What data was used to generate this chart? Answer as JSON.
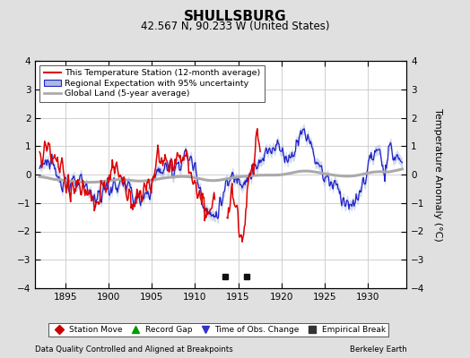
{
  "title": "SHULLSBURG",
  "subtitle": "42.567 N, 90.233 W (United States)",
  "ylabel": "Temperature Anomaly (°C)",
  "xlabel_left": "Data Quality Controlled and Aligned at Breakpoints",
  "xlabel_right": "Berkeley Earth",
  "ylim": [
    -4,
    4
  ],
  "xlim": [
    1891.5,
    1934.5
  ],
  "yticks": [
    -4,
    -3,
    -2,
    -1,
    0,
    1,
    2,
    3,
    4
  ],
  "xticks": [
    1895,
    1900,
    1905,
    1910,
    1915,
    1920,
    1925,
    1930
  ],
  "bg_color": "#e0e0e0",
  "plot_bg_color": "#ffffff",
  "grid_color": "#c8c8c8",
  "empirical_breaks": [
    1913.5,
    1916.0
  ],
  "red_line_color": "#dd0000",
  "blue_line_color": "#2222cc",
  "blue_band_color": "#aabbdd",
  "gray_line_color": "#aaaaaa",
  "legend_labels": [
    "This Temperature Station (12-month average)",
    "Regional Expectation with 95% uncertainty",
    "Global Land (5-year average)"
  ],
  "marker_legend_labels": [
    "Station Move",
    "Record Gap",
    "Time of Obs. Change",
    "Empirical Break"
  ],
  "marker_legend_colors": [
    "#cc0000",
    "#009900",
    "#3333cc",
    "#333333"
  ],
  "marker_legend_markers": [
    "D",
    "^",
    "v",
    "s"
  ]
}
